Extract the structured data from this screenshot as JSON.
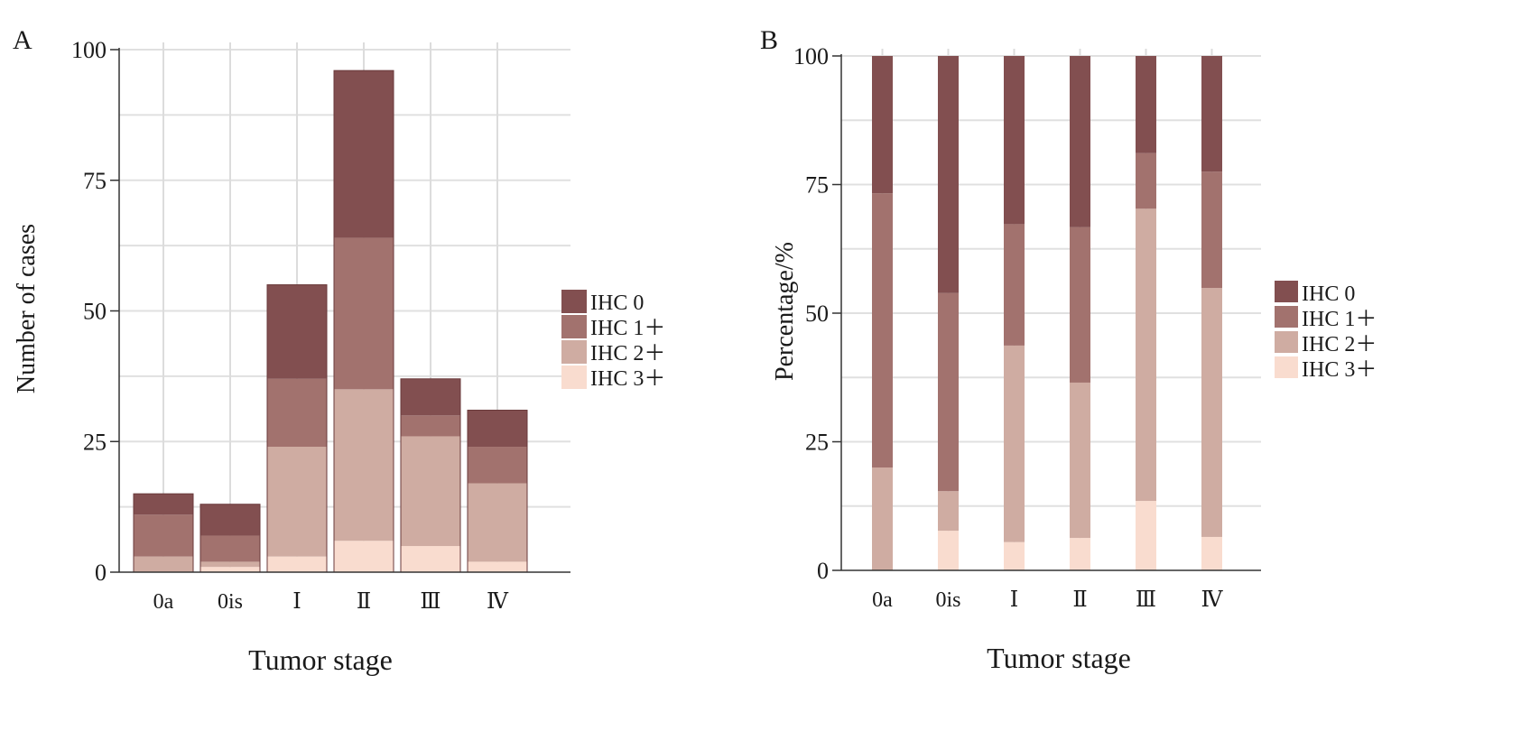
{
  "chart_data": [
    {
      "panel": "A",
      "type": "bar",
      "stacked": true,
      "categories": [
        "0a",
        "0is",
        "Ⅰ",
        "Ⅱ",
        "Ⅲ",
        "Ⅳ"
      ],
      "xlabel": "Tumor stage",
      "ylabel": "Number of cases",
      "ylim": [
        0,
        100
      ],
      "yticks": [
        0,
        25,
        50,
        75,
        100
      ],
      "grid": true,
      "legend_position": "right",
      "series": [
        {
          "name": "IHC 3＋",
          "color": "#f9dccf",
          "values": [
            0,
            1,
            3,
            6,
            5,
            2
          ]
        },
        {
          "name": "IHC 2＋",
          "color": "#cfaca2",
          "values": [
            3,
            1,
            21,
            29,
            21,
            15
          ]
        },
        {
          "name": "IHC 1＋",
          "color": "#a2726e",
          "values": [
            8,
            5,
            13,
            29,
            4,
            7
          ]
        },
        {
          "name": "IHC 0",
          "color": "#824f50",
          "values": [
            4,
            6,
            18,
            32,
            7,
            7
          ]
        }
      ]
    },
    {
      "panel": "B",
      "type": "bar",
      "stacked": true,
      "categories": [
        "0a",
        "0is",
        "Ⅰ",
        "Ⅱ",
        "Ⅲ",
        "Ⅳ"
      ],
      "xlabel": "Tumor stage",
      "ylabel": "Percentage/%",
      "ylim": [
        0,
        100
      ],
      "yticks": [
        0,
        25,
        50,
        75,
        100
      ],
      "grid": true,
      "legend_position": "right",
      "series": [
        {
          "name": "IHC 3＋",
          "color": "#f9dccf",
          "values": [
            0,
            7.7,
            5.5,
            6.3,
            13.5,
            6.5
          ]
        },
        {
          "name": "IHC 2＋",
          "color": "#cfaca2",
          "values": [
            20,
            7.7,
            38.2,
            30.2,
            56.8,
            48.4
          ]
        },
        {
          "name": "IHC 1＋",
          "color": "#a2726e",
          "values": [
            53.3,
            38.5,
            23.6,
            30.2,
            10.8,
            22.6
          ]
        },
        {
          "name": "IHC 0",
          "color": "#824f50",
          "values": [
            26.7,
            46.1,
            32.7,
            33.3,
            18.9,
            22.5
          ]
        }
      ]
    }
  ]
}
